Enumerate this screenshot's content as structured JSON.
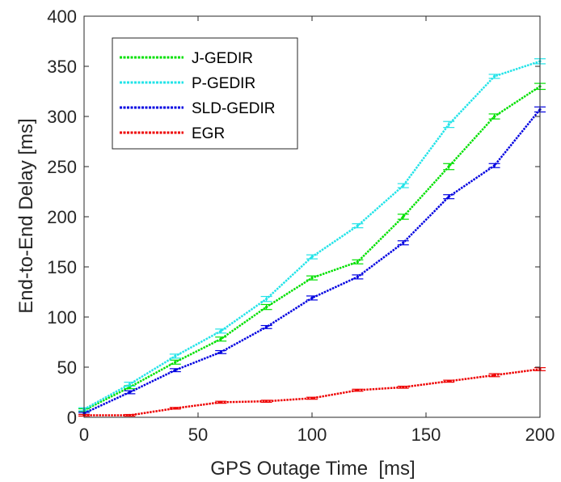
{
  "chart_data": {
    "type": "line",
    "xlabel": "GPS Outage Time  [ms]",
    "ylabel": "End-to-End Delay [ms]",
    "xlim": [
      0,
      200
    ],
    "ylim": [
      0,
      400
    ],
    "xticks": [
      "0",
      "50",
      "100",
      "150",
      "200"
    ],
    "yticks": [
      "0",
      "50",
      "100",
      "150",
      "200",
      "250",
      "300",
      "350",
      "400"
    ],
    "grid": false,
    "legend_position": "top-left",
    "x": [
      0,
      20,
      40,
      60,
      80,
      100,
      120,
      140,
      160,
      180,
      200
    ],
    "series": [
      {
        "name": "J-GEDIR",
        "color": "#00e000",
        "values": [
          7,
          30,
          55,
          78,
          110,
          139,
          155,
          200,
          250,
          300,
          330
        ],
        "errors": [
          1.5,
          1.5,
          2,
          2,
          2.5,
          2,
          2,
          2.5,
          3,
          2.5,
          3
        ]
      },
      {
        "name": "P-GEDIR",
        "color": "#22e3e8",
        "values": [
          8,
          33,
          61,
          86,
          118,
          160,
          191,
          231,
          292,
          340,
          355
        ],
        "errors": [
          1.5,
          2,
          2,
          2,
          2.5,
          2,
          2,
          2,
          3,
          2,
          2.5
        ]
      },
      {
        "name": "SLD-GEDIR",
        "color": "#0000e0",
        "values": [
          4,
          25,
          47,
          65,
          90,
          119,
          140,
          174,
          220,
          251,
          307
        ],
        "errors": [
          1,
          1.5,
          1.5,
          1.5,
          1.5,
          2,
          2,
          2,
          2,
          2,
          2.5
        ]
      },
      {
        "name": "EGR",
        "color": "#ee0000",
        "values": [
          2,
          2,
          9,
          15,
          16,
          19,
          27,
          30,
          36,
          42,
          48
        ],
        "errors": [
          0.8,
          0.8,
          0.8,
          1,
          1,
          1,
          1,
          1,
          1,
          1.5,
          1.5
        ]
      }
    ]
  }
}
